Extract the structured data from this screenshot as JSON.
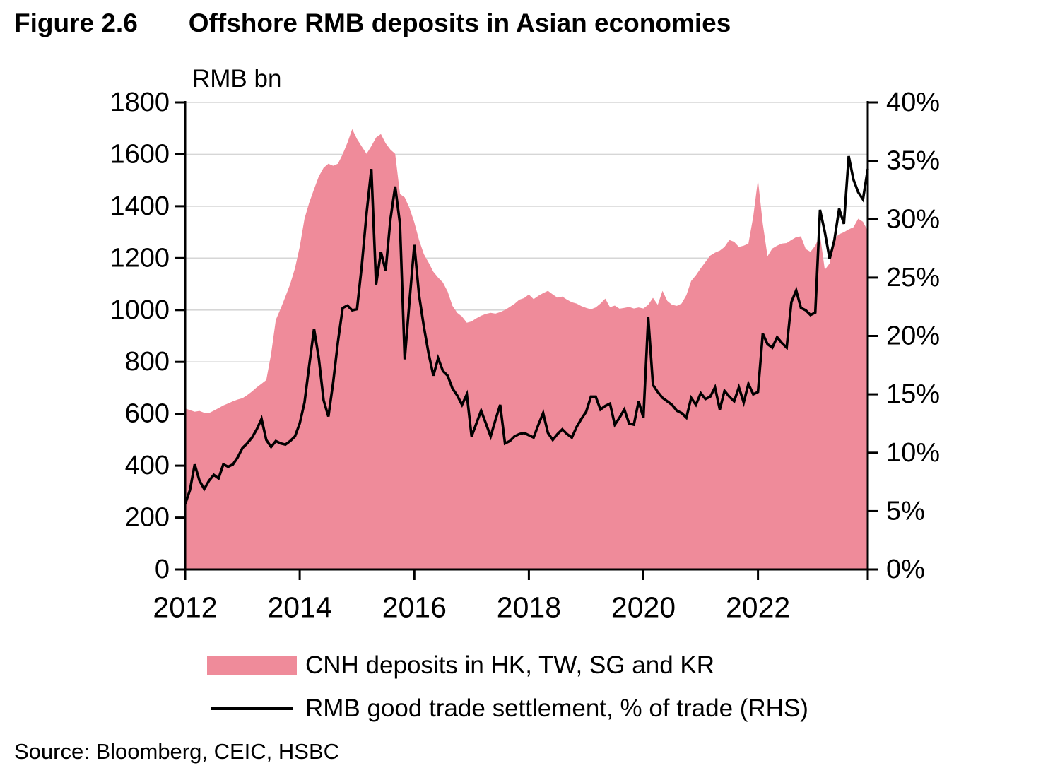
{
  "header": {
    "figure_label": "Figure 2.6",
    "title": "Offshore RMB deposits in Asian economies"
  },
  "footer": {
    "source": "Source: Bloomberg, CEIC, HSBC"
  },
  "chart_data": {
    "type": "combo",
    "x_unit": "month",
    "x_start": "2012-01",
    "x_end": "2023-12",
    "x_tick_labels": [
      "2012",
      "2014",
      "2016",
      "2018",
      "2020",
      "2022"
    ],
    "grid": true,
    "grid_color": "#d6d6d6",
    "axis_color": "#000000",
    "left_axis": {
      "title": "RMB bn",
      "min": 0,
      "max": 1800,
      "step": 200,
      "tick_labels": [
        "1800",
        "1600",
        "1400",
        "1200",
        "1000",
        "800",
        "600",
        "400",
        "200",
        "0"
      ]
    },
    "right_axis": {
      "min": 0,
      "max": 40,
      "step": 5,
      "tick_labels": [
        "40%",
        "35%",
        "30%",
        "25%",
        "20%",
        "15%",
        "10%",
        "5%",
        "0%"
      ]
    },
    "series": [
      {
        "name": "CNH deposits in HK, TW, SG and KR",
        "type": "area",
        "axis": "left",
        "color": "#EF8B9A",
        "values": [
          621,
          614,
          608,
          611,
          604,
          603,
          612,
          622,
          632,
          640,
          648,
          655,
          660,
          672,
          686,
          702,
          716,
          730,
          830,
          962,
          1005,
          1052,
          1100,
          1161,
          1243,
          1352,
          1414,
          1466,
          1515,
          1548,
          1564,
          1556,
          1564,
          1600,
          1645,
          1697,
          1659,
          1630,
          1602,
          1632,
          1665,
          1678,
          1643,
          1618,
          1602,
          1447,
          1434,
          1393,
          1338,
          1270,
          1215,
          1183,
          1147,
          1125,
          1106,
          1071,
          1016,
          989,
          975,
          951,
          956,
          968,
          978,
          985,
          989,
          986,
          992,
          1000,
          1012,
          1024,
          1040,
          1046,
          1060,
          1042,
          1055,
          1065,
          1074,
          1060,
          1048,
          1052,
          1040,
          1030,
          1025,
          1015,
          1008,
          1003,
          1010,
          1025,
          1044,
          1011,
          1017,
          1005,
          1008,
          1012,
          1006,
          1010,
          1006,
          1020,
          1047,
          1020,
          1074,
          1035,
          1020,
          1016,
          1025,
          1057,
          1112,
          1134,
          1161,
          1185,
          1210,
          1221,
          1229,
          1243,
          1270,
          1263,
          1243,
          1248,
          1256,
          1360,
          1502,
          1333,
          1207,
          1237,
          1248,
          1256,
          1258,
          1270,
          1281,
          1284,
          1235,
          1224,
          1248,
          1289,
          1155,
          1180,
          1275,
          1292,
          1300,
          1311,
          1319,
          1352,
          1340,
          1305
        ]
      },
      {
        "name": "RMB good trade settlement, % of trade (RHS)",
        "type": "line",
        "axis": "right",
        "color": "#000000",
        "values": [
          5.6,
          6.8,
          9.0,
          7.6,
          6.9,
          7.6,
          8.1,
          7.8,
          9.0,
          8.8,
          9.0,
          9.6,
          10.4,
          10.8,
          11.3,
          12.0,
          12.9,
          11.1,
          10.5,
          11.0,
          10.8,
          10.7,
          11.0,
          11.4,
          12.5,
          14.3,
          17.5,
          20.6,
          18.1,
          14.5,
          13.1,
          16.0,
          19.5,
          22.4,
          22.6,
          22.2,
          22.3,
          26.0,
          30.5,
          34.3,
          24.4,
          27.2,
          25.6,
          30.0,
          32.8,
          29.6,
          18.0,
          23.0,
          27.8,
          23.5,
          20.8,
          18.5,
          16.6,
          18.1,
          17.0,
          16.6,
          15.5,
          14.9,
          14.1,
          15.0,
          11.4,
          12.5,
          13.6,
          12.5,
          11.4,
          12.8,
          14.1,
          10.8,
          11.0,
          11.4,
          11.6,
          11.7,
          11.5,
          11.3,
          12.4,
          13.4,
          11.7,
          11.1,
          11.6,
          12.0,
          11.6,
          11.3,
          12.2,
          12.9,
          13.5,
          14.8,
          14.8,
          13.7,
          14.0,
          14.2,
          12.4,
          13.0,
          13.7,
          12.5,
          12.4,
          14.4,
          13.0,
          21.6,
          15.8,
          15.2,
          14.7,
          14.4,
          14.1,
          13.6,
          13.4,
          13.0,
          14.7,
          14.1,
          15.1,
          14.6,
          14.8,
          15.6,
          13.7,
          15.3,
          14.8,
          14.4,
          15.6,
          14.3,
          15.9,
          15.0,
          15.2,
          20.2,
          19.3,
          19.0,
          19.9,
          19.4,
          19.0,
          22.9,
          23.9,
          22.4,
          22.2,
          21.8,
          22.0,
          30.8,
          28.9,
          26.6,
          28.2,
          30.9,
          29.6,
          35.4,
          33.4,
          32.3,
          31.7,
          34.3
        ]
      }
    ],
    "legend_position": "bottom"
  }
}
